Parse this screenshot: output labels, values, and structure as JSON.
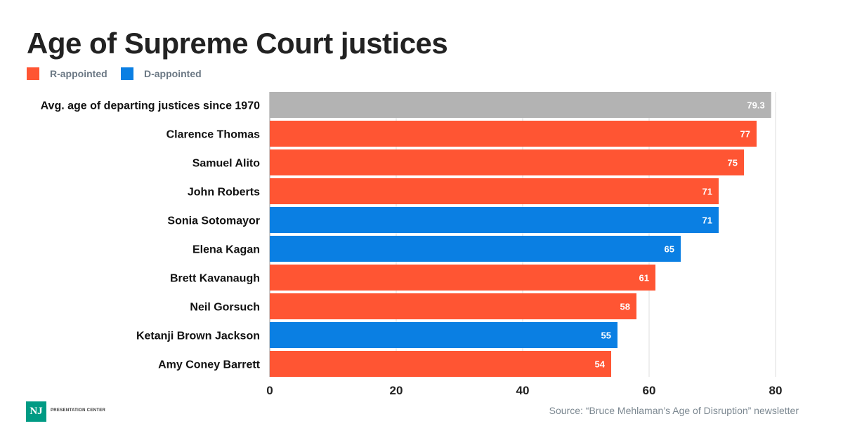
{
  "title": "Age of Supreme Court justices",
  "legend": [
    {
      "label": "R-appointed",
      "color": "#ff5533"
    },
    {
      "label": "D-appointed",
      "color": "#0a7fe3"
    }
  ],
  "source": "Source: “Bruce Mehlaman’s Age of Disruption” newsletter",
  "logo": {
    "mark": "NJ",
    "text": "PRESENTATION CENTER"
  },
  "chart_data": {
    "type": "bar",
    "orientation": "horizontal",
    "title": "Age of Supreme Court justices",
    "categories": [
      "Avg. age of departing justices since 1970",
      "Clarence Thomas",
      "Samuel Alito",
      "John Roberts",
      "Sonia Sotomayor",
      "Elena Kagan",
      "Brett Kavanaugh",
      "Neil Gorsuch",
      "Ketanji Brown Jackson",
      "Amy Coney Barrett"
    ],
    "values": [
      79.3,
      77,
      75,
      71,
      71,
      65,
      61,
      58,
      55,
      54
    ],
    "labels": [
      "79.3",
      "77",
      "75",
      "71",
      "71",
      "65",
      "61",
      "58",
      "55",
      "54"
    ],
    "groups": [
      "avg",
      "R",
      "R",
      "R",
      "D",
      "D",
      "R",
      "R",
      "D",
      "R"
    ],
    "colors": {
      "avg": "#b3b3b3",
      "R": "#ff5533",
      "D": "#0a7fe3"
    },
    "xlim": [
      0,
      80
    ],
    "xticks": [
      "0",
      "20",
      "40",
      "60",
      "80"
    ],
    "grid": true
  }
}
